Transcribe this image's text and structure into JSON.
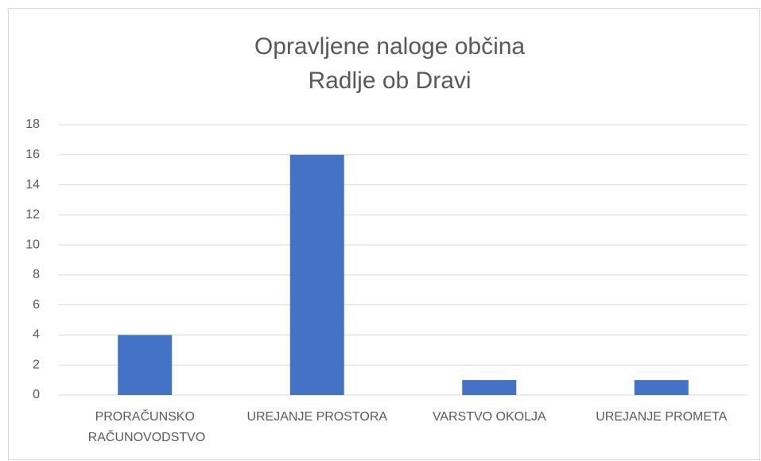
{
  "chart_data": {
    "type": "bar",
    "title": [
      "Opravljene naloge občina",
      "Radlje ob Dravi"
    ],
    "categories": [
      "PRORAČUNSKO RAČUNOVODSTVO",
      "UREJANJE PROSTORA",
      "VARSTVO OKOLJA",
      "UREJANJE PROMETA"
    ],
    "values": [
      4,
      16,
      1,
      1
    ],
    "color": "#4472c4",
    "ylim": [
      0,
      18
    ],
    "yticks": [
      0,
      2,
      4,
      6,
      8,
      10,
      12,
      14,
      16,
      18
    ],
    "grid": true
  }
}
